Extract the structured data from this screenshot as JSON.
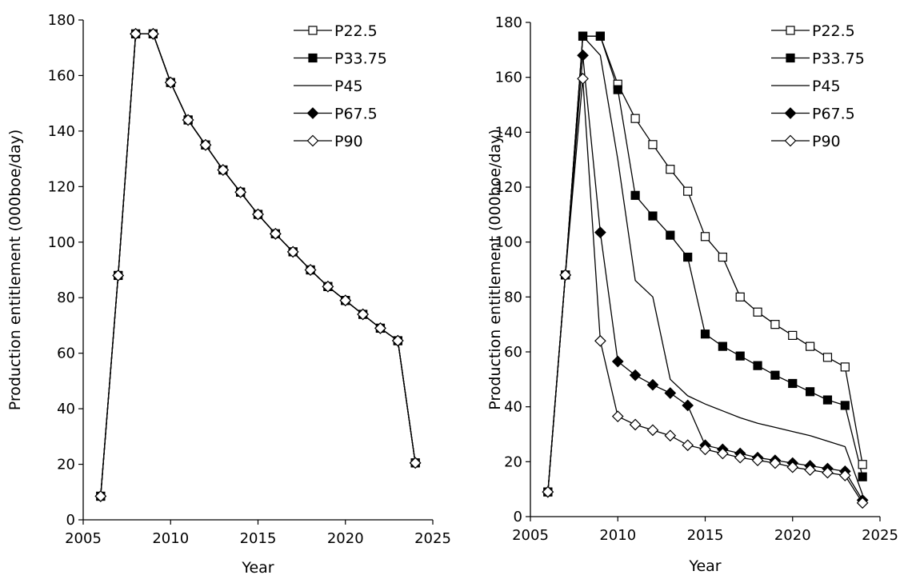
{
  "chart_data": [
    {
      "type": "line",
      "title": "",
      "xlabel": "Year",
      "ylabel": "Production entitlement (000boe/day)",
      "xlim": [
        2005,
        2025
      ],
      "ylim": [
        0,
        180
      ],
      "xticks": [
        2005,
        2010,
        2015,
        2020,
        2025
      ],
      "yticks": [
        0,
        20,
        40,
        60,
        80,
        100,
        120,
        140,
        160,
        180
      ],
      "grid": false,
      "legend_position": "top-right",
      "x": [
        2006,
        2007,
        2008,
        2009,
        2010,
        2011,
        2012,
        2013,
        2014,
        2015,
        2016,
        2017,
        2018,
        2019,
        2020,
        2021,
        2022,
        2023,
        2024
      ],
      "series": [
        {
          "name": "P22.5",
          "marker": "open-square",
          "values": [
            8.5,
            88,
            175,
            175,
            157.5,
            144,
            135,
            126,
            118,
            110,
            103,
            96.5,
            90,
            84,
            79,
            74,
            69,
            64.5,
            20.5
          ]
        },
        {
          "name": "P33.75",
          "marker": "filled-square",
          "values": [
            8.5,
            88,
            175,
            175,
            157.5,
            144,
            135,
            126,
            118,
            110,
            103,
            96.5,
            90,
            84,
            79,
            74,
            69,
            64.5,
            20.5
          ]
        },
        {
          "name": "P45",
          "marker": "none",
          "values": [
            8.5,
            88,
            175,
            175,
            157.5,
            144,
            135,
            126,
            118,
            110,
            103,
            96.5,
            90,
            84,
            79,
            74,
            69,
            64.5,
            20.5
          ]
        },
        {
          "name": "P67.5",
          "marker": "filled-diamond",
          "values": [
            8.5,
            88,
            175,
            175,
            157.5,
            144,
            135,
            126,
            118,
            110,
            103,
            96.5,
            90,
            84,
            79,
            74,
            69,
            64.5,
            20.5
          ]
        },
        {
          "name": "P90",
          "marker": "open-diamond",
          "values": [
            8.5,
            88,
            175,
            175,
            157.5,
            144,
            135,
            126,
            118,
            110,
            103,
            96.5,
            90,
            84,
            79,
            74,
            69,
            64.5,
            20.5
          ]
        }
      ]
    },
    {
      "type": "line",
      "title": "",
      "xlabel": "Year",
      "ylabel": "Production entitlement (000boe/day)",
      "xlim": [
        2005,
        2025
      ],
      "ylim": [
        0,
        180
      ],
      "xticks": [
        2005,
        2010,
        2015,
        2020,
        2025
      ],
      "yticks": [
        0,
        20,
        40,
        60,
        80,
        100,
        120,
        140,
        160,
        180
      ],
      "grid": false,
      "legend_position": "top-right",
      "x": [
        2006,
        2007,
        2008,
        2009,
        2010,
        2011,
        2012,
        2013,
        2014,
        2015,
        2016,
        2017,
        2018,
        2019,
        2020,
        2021,
        2022,
        2023,
        2024
      ],
      "series": [
        {
          "name": "P22.5",
          "marker": "open-square",
          "values": [
            9,
            88,
            175,
            175,
            157.5,
            145,
            135.5,
            126.5,
            118.5,
            102,
            94.5,
            80,
            74.5,
            70,
            66,
            62,
            58,
            54.5,
            19
          ]
        },
        {
          "name": "P33.75",
          "marker": "filled-square",
          "values": [
            9,
            88,
            175,
            175,
            155.5,
            117,
            109.5,
            102.5,
            94.5,
            66.5,
            62,
            58.5,
            55,
            51.5,
            48.5,
            45.5,
            42.5,
            40.5,
            14.5
          ]
        },
        {
          "name": "P45",
          "marker": "none",
          "values": [
            9,
            88,
            175,
            168,
            130,
            86,
            80,
            50,
            44,
            41,
            38.5,
            36,
            34,
            32.5,
            31,
            29.5,
            27.5,
            25.5,
            8
          ]
        },
        {
          "name": "P67.5",
          "marker": "filled-diamond",
          "values": [
            9,
            88,
            168,
            103.5,
            56.5,
            51.5,
            48,
            45,
            40.5,
            26,
            24.5,
            23,
            21.5,
            20.5,
            19.5,
            18.5,
            17.5,
            16.5,
            6
          ]
        },
        {
          "name": "P90",
          "marker": "open-diamond",
          "values": [
            9,
            88,
            159.5,
            64,
            36.5,
            33.5,
            31.5,
            29.5,
            26,
            24.5,
            23,
            21.5,
            20.5,
            19.5,
            18,
            17,
            16,
            15,
            5
          ]
        }
      ]
    }
  ]
}
